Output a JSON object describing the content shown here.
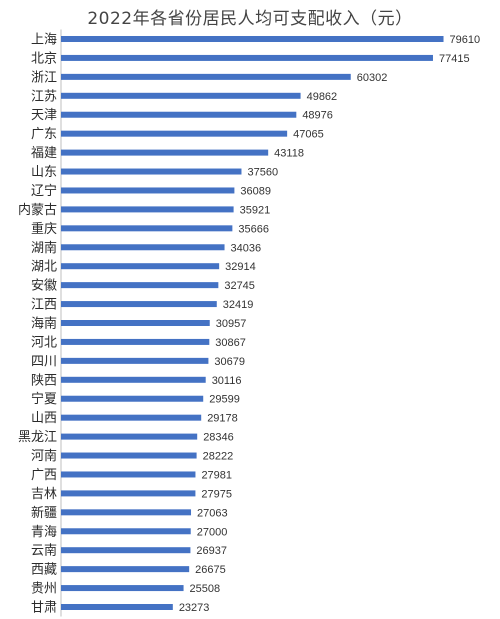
{
  "chart_data": {
    "type": "bar",
    "orientation": "horizontal",
    "title": "2022年各省份居民人均可支配收入（元）",
    "categories": [
      "上海",
      "北京",
      "浙江",
      "江苏",
      "天津",
      "广东",
      "福建",
      "山东",
      "辽宁",
      "内蒙古",
      "重庆",
      "湖南",
      "湖北",
      "安徽",
      "江西",
      "海南",
      "河北",
      "四川",
      "陕西",
      "宁夏",
      "山西",
      "黑龙江",
      "河南",
      "广西",
      "吉林",
      "新疆",
      "青海",
      "云南",
      "西藏",
      "贵州",
      "甘肃"
    ],
    "values": [
      79610,
      77415,
      60302,
      49862,
      48976,
      47065,
      43118,
      37560,
      36089,
      35921,
      35666,
      34036,
      32914,
      32745,
      32419,
      30957,
      30867,
      30679,
      30116,
      29599,
      29178,
      28346,
      28222,
      27981,
      27975,
      27063,
      27000,
      26937,
      26675,
      25508,
      23273
    ],
    "xlim": [
      0,
      82000
    ],
    "bar_color": "#4472C4",
    "grid": false,
    "legend": "none"
  }
}
